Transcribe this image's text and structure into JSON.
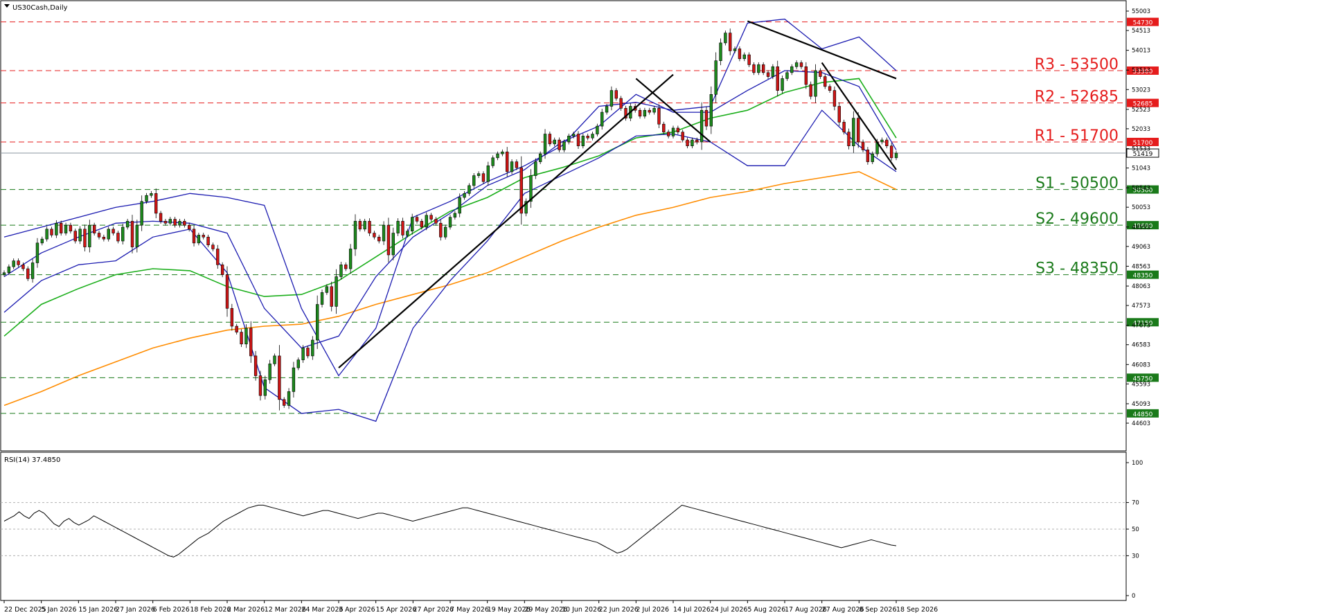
{
  "chart_data": {
    "type": "candlestick",
    "symbol_label": "US30Cash,Daily",
    "price_axis": {
      "ylim": [
        44603,
        55003
      ],
      "ticks": [
        55003,
        54513,
        54013,
        53513,
        53023,
        52523,
        52033,
        51533,
        51043,
        50543,
        50053,
        49553,
        49063,
        48563,
        48063,
        47573,
        47073,
        46583,
        46083,
        45593,
        45093,
        44603
      ],
      "current_price": 51419
    },
    "x_axis": {
      "tick_labels": [
        "22 Dec 2025",
        "5 Jan 2026",
        "15 Jan 2026",
        "27 Jan 2026",
        "6 Feb 2026",
        "18 Feb 2026",
        "2 Mar 2026",
        "12 Mar 2026",
        "24 Mar 2026",
        "3 Apr 2026",
        "15 Apr 2026",
        "27 Apr 2026",
        "7 May 2026",
        "19 May 2026",
        "29 May 2026",
        "10 Jun 2026",
        "22 Jun 2026",
        "2 Jul 2026",
        "14 Jul 2026",
        "24 Jul 2026",
        "5 Aug 2026",
        "17 Aug 2026",
        "27 Aug 2026",
        "8 Sep 2026",
        "18 Sep 2026"
      ]
    },
    "levels": [
      {
        "value": 54730,
        "tag": "54730",
        "style": "red-dash"
      },
      {
        "value": 53500,
        "tag": "53500",
        "label": "R3 - 53500",
        "style": "red-dash"
      },
      {
        "value": 52685,
        "tag": "52685",
        "label": "R2 - 52685",
        "style": "red-dash"
      },
      {
        "value": 51700,
        "tag": "51700",
        "label": "R1 - 51700",
        "style": "red-dash"
      },
      {
        "value": 50500,
        "tag": "50500",
        "label": "S1 - 50500",
        "style": "green-dash"
      },
      {
        "value": 49600,
        "tag": "49600",
        "label": "S2 - 49600",
        "style": "green-dash"
      },
      {
        "value": 48350,
        "tag": "48350",
        "label": "S3 - 48350",
        "style": "green-dash"
      },
      {
        "value": 47150,
        "tag": "47150",
        "style": "green-dash"
      },
      {
        "value": 45750,
        "tag": "45750",
        "style": "green-dash"
      },
      {
        "value": 44850,
        "tag": "44850",
        "style": "green-dash"
      }
    ],
    "candles_close": [
      48400,
      48550,
      48700,
      48600,
      48500,
      48250,
      48650,
      49150,
      49250,
      49500,
      49350,
      49650,
      49400,
      49600,
      49450,
      49200,
      49500,
      49050,
      49600,
      49400,
      49300,
      49250,
      49500,
      49400,
      49200,
      49550,
      49700,
      49050,
      49600,
      50200,
      50350,
      50400,
      49900,
      49700,
      49650,
      49750,
      49600,
      49700,
      49600,
      49500,
      49150,
      49350,
      49300,
      49100,
      49000,
      48600,
      48350,
      47500,
      47050,
      46900,
      46600,
      47000,
      46300,
      45800,
      45300,
      45700,
      46100,
      46300,
      45200,
      45050,
      45400,
      46000,
      46200,
      46500,
      46300,
      46700,
      47600,
      47900,
      48050,
      47550,
      48300,
      48600,
      48500,
      49000,
      49700,
      49500,
      49700,
      49400,
      49300,
      49200,
      49600,
      48850,
      49400,
      49700,
      49350,
      49450,
      49800,
      49700,
      49550,
      49850,
      49750,
      49650,
      49300,
      49550,
      49800,
      49900,
      50300,
      50400,
      50600,
      50850,
      50900,
      50700,
      51100,
      51300,
      51400,
      51450,
      50950,
      51200,
      51050,
      49900,
      50200,
      50850,
      51200,
      51400,
      51900,
      51650,
      51750,
      51500,
      51700,
      51850,
      51900,
      51600,
      51850,
      51800,
      51900,
      52100,
      52450,
      52600,
      53000,
      52800,
      52550,
      52300,
      52600,
      52500,
      52350,
      52500,
      52450,
      52550,
      52150,
      51950,
      51850,
      52050,
      51950,
      51750,
      51600,
      51750,
      51700,
      52500,
      52100,
      52900,
      53750,
      54200,
      54450,
      54000,
      54050,
      53800,
      53900,
      53650,
      53450,
      53650,
      53450,
      53350,
      53600,
      53000,
      53300,
      53450,
      53600,
      53700,
      53600,
      53150,
      52850,
      53500,
      53350,
      53100,
      53000,
      52600,
      52200,
      51950,
      51600,
      52300,
      51700,
      51500,
      51200,
      51400,
      51700,
      51750,
      51600,
      51300,
      51419
    ],
    "overlays": {
      "bollinger_bands": {
        "color": "#1a1ab0",
        "upper": [
          49300,
          49550,
          49800,
          50050,
          50200,
          50400,
          50300,
          50100,
          47500,
          45800,
          47000,
          49800,
          50200,
          50700,
          51100,
          51600,
          52600,
          52700,
          52500,
          52600,
          54700,
          54800,
          54050,
          54350,
          53500
        ],
        "middle": [
          48300,
          48900,
          49300,
          49650,
          49700,
          49650,
          49400,
          47500,
          46500,
          46800,
          48300,
          49300,
          49900,
          50600,
          51000,
          51700,
          52100,
          52900,
          52450,
          52450,
          53000,
          53500,
          53450,
          53100,
          51500
        ],
        "lower": [
          47400,
          48200,
          48600,
          48700,
          49300,
          49500,
          48400,
          45500,
          44850,
          44950,
          44650,
          47000,
          48200,
          49200,
          50400,
          50850,
          51300,
          51850,
          51900,
          51700,
          51100,
          51100,
          52500,
          51600,
          50950
        ]
      },
      "moving_averages": [
        {
          "color": "#1aae1a",
          "values": [
            46800,
            47600,
            48000,
            48350,
            48500,
            48450,
            48050,
            47800,
            47850,
            48200,
            48800,
            49400,
            49950,
            50300,
            50800,
            51050,
            51350,
            51800,
            51950,
            52300,
            52500,
            52950,
            53200,
            53300,
            51800
          ]
        },
        {
          "color": "#ff8c00",
          "values": [
            45050,
            45400,
            45800,
            46150,
            46500,
            46750,
            46950,
            47050,
            47100,
            47300,
            47600,
            47850,
            48100,
            48400,
            48800,
            49200,
            49550,
            49850,
            50050,
            50300,
            50450,
            50650,
            50800,
            50950,
            50500
          ]
        }
      ]
    },
    "trendlines": [
      {
        "from": [
          46000,
          "3 Apr 2026"
        ],
        "to": [
          53400,
          "14 Jul 2026"
        ]
      },
      {
        "from": [
          53300,
          "2 Jul 2026"
        ],
        "to": [
          51700,
          "24 Jul 2026"
        ]
      },
      {
        "from": [
          54750,
          "5 Aug 2026"
        ],
        "to": [
          53300,
          "18 Sep 2026"
        ]
      },
      {
        "from": [
          53700,
          "27 Aug 2026"
        ],
        "to": [
          51000,
          "18 Sep 2026"
        ]
      }
    ],
    "rsi": {
      "label": "RSI(14) 37.4850",
      "ylim": [
        0,
        100
      ],
      "ticks": [
        100,
        70,
        50,
        30,
        0
      ],
      "values": [
        56,
        58,
        60,
        63,
        60,
        58,
        62,
        64,
        62,
        58,
        54,
        52,
        56,
        58,
        55,
        53,
        55,
        57,
        60,
        58,
        56,
        54,
        52,
        50,
        48,
        46,
        44,
        42,
        40,
        38,
        36,
        34,
        32,
        30,
        29,
        31,
        34,
        37,
        40,
        43,
        45,
        47,
        50,
        53,
        56,
        58,
        60,
        62,
        64,
        66,
        67,
        68,
        68,
        67,
        66,
        65,
        64,
        63,
        62,
        61,
        60,
        61,
        62,
        63,
        64,
        64,
        63,
        62,
        61,
        60,
        59,
        58,
        59,
        60,
        61,
        62,
        62,
        61,
        60,
        59,
        58,
        57,
        56,
        57,
        58,
        59,
        60,
        61,
        62,
        63,
        64,
        65,
        66,
        66,
        65,
        64,
        63,
        62,
        61,
        60,
        59,
        58,
        57,
        56,
        55,
        54,
        53,
        52,
        51,
        50,
        49,
        48,
        47,
        46,
        45,
        44,
        43,
        42,
        41,
        40,
        38,
        36,
        34,
        32,
        33,
        35,
        38,
        41,
        44,
        47,
        50,
        53,
        56,
        59,
        62,
        65,
        68,
        67,
        66,
        65,
        64,
        63,
        62,
        61,
        60,
        59,
        58,
        57,
        56,
        55,
        54,
        53,
        52,
        51,
        50,
        49,
        48,
        47,
        46,
        45,
        44,
        43,
        42,
        41,
        40,
        39,
        38,
        37,
        36,
        37,
        38,
        39,
        40,
        41,
        42,
        41,
        40,
        39,
        38,
        37.485
      ]
    }
  }
}
